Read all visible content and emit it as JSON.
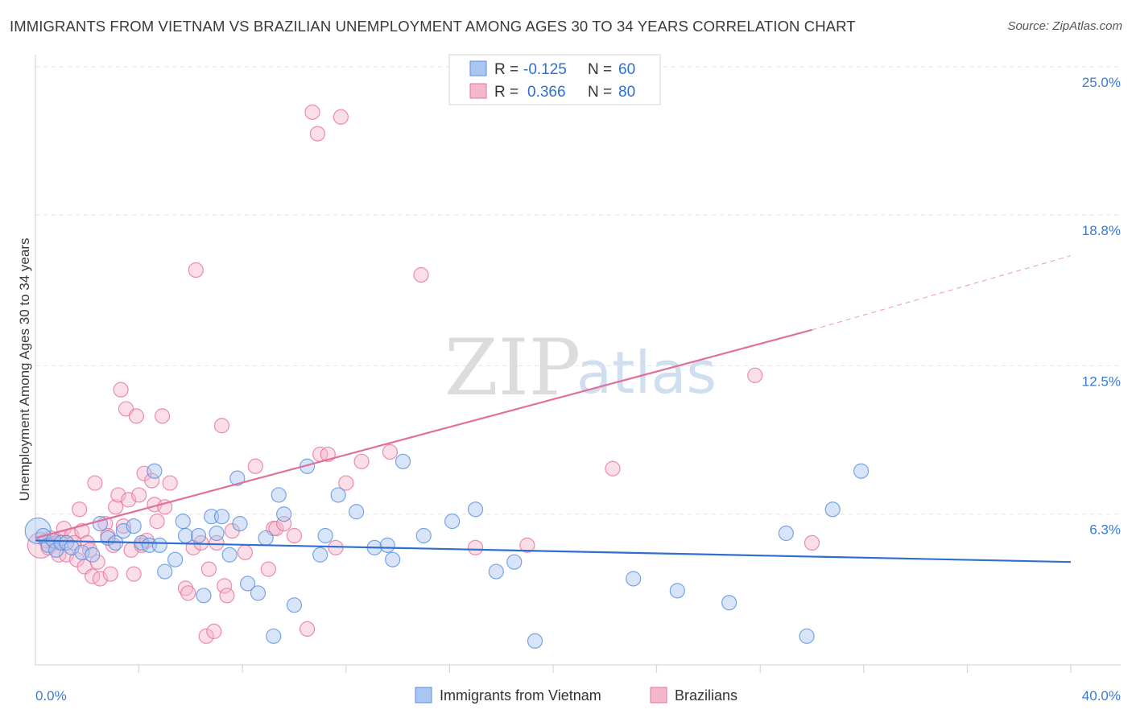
{
  "title": "IMMIGRANTS FROM VIETNAM VS BRAZILIAN UNEMPLOYMENT AMONG AGES 30 TO 34 YEARS CORRELATION CHART",
  "source": "Source: ZipAtlas.com",
  "watermark": {
    "zip": "ZIP",
    "atlas": "atlas"
  },
  "colors": {
    "blue": "#5a8fe0",
    "blue_fill": "#a9c6f0",
    "pink": "#e8709c",
    "pink_fill": "#f5b7cb",
    "blue_line": "#2f6fd0",
    "pink_line": "#e06f9a"
  },
  "legend": {
    "r_label": "R =",
    "n_label": "N =",
    "series1": {
      "r": "-0.125",
      "n": "60"
    },
    "series2": {
      "r": "0.366",
      "n": "80"
    }
  },
  "bottom_legend": {
    "series1": "Immigrants from Vietnam",
    "series2": "Brazilians"
  },
  "chart_data": {
    "type": "scatter",
    "title": "IMMIGRANTS FROM VIETNAM VS BRAZILIAN UNEMPLOYMENT AMONG AGES 30 TO 34 YEARS CORRELATION CHART",
    "xlabel": "",
    "ylabel": "Unemployment Among Ages 30 to 34 years",
    "xlim": [
      0,
      40
    ],
    "ylim": [
      0,
      25.5
    ],
    "x_tick_labels": [
      "0.0%",
      "40.0%"
    ],
    "y_ticks": [
      6.3,
      12.5,
      18.8,
      25.0
    ],
    "y_tick_labels": [
      "6.3%",
      "12.5%",
      "18.8%",
      "25.0%"
    ],
    "series": [
      {
        "name": "Immigrants from Vietnam",
        "color": "#5a8fe0",
        "r": -0.125,
        "n": 60,
        "trend": {
          "x0": 0,
          "y0": 5.2,
          "x1": 40,
          "y1": 4.3
        },
        "points": [
          [
            0.1,
            5.6
          ],
          [
            0.3,
            5.4
          ],
          [
            0.5,
            5.0
          ],
          [
            0.7,
            5.2
          ],
          [
            0.8,
            4.8
          ],
          [
            1.0,
            5.1
          ],
          [
            1.2,
            5.1
          ],
          [
            1.4,
            4.9
          ],
          [
            1.8,
            4.7
          ],
          [
            2.2,
            4.6
          ],
          [
            2.5,
            5.9
          ],
          [
            2.8,
            5.3
          ],
          [
            3.1,
            5.1
          ],
          [
            3.4,
            5.6
          ],
          [
            3.8,
            5.8
          ],
          [
            4.1,
            5.1
          ],
          [
            4.4,
            5.0
          ],
          [
            4.6,
            8.1
          ],
          [
            4.8,
            5.0
          ],
          [
            5.0,
            3.9
          ],
          [
            5.4,
            4.4
          ],
          [
            5.7,
            6.0
          ],
          [
            5.8,
            5.4
          ],
          [
            6.3,
            5.4
          ],
          [
            6.5,
            2.9
          ],
          [
            6.8,
            6.2
          ],
          [
            7.0,
            5.5
          ],
          [
            7.2,
            6.2
          ],
          [
            7.5,
            4.6
          ],
          [
            7.8,
            7.8
          ],
          [
            7.9,
            5.9
          ],
          [
            8.2,
            3.4
          ],
          [
            8.6,
            3.0
          ],
          [
            8.9,
            5.3
          ],
          [
            9.2,
            1.2
          ],
          [
            9.4,
            7.1
          ],
          [
            9.6,
            6.3
          ],
          [
            10.0,
            2.5
          ],
          [
            10.5,
            8.3
          ],
          [
            11.0,
            4.6
          ],
          [
            11.2,
            5.4
          ],
          [
            11.7,
            7.1
          ],
          [
            12.4,
            6.4
          ],
          [
            13.1,
            4.9
          ],
          [
            13.6,
            5.0
          ],
          [
            13.8,
            4.4
          ],
          [
            14.2,
            8.5
          ],
          [
            15.0,
            5.4
          ],
          [
            16.1,
            6.0
          ],
          [
            17.0,
            6.5
          ],
          [
            17.8,
            3.9
          ],
          [
            18.5,
            4.3
          ],
          [
            19.3,
            1.0
          ],
          [
            23.1,
            3.6
          ],
          [
            24.8,
            3.1
          ],
          [
            26.8,
            2.6
          ],
          [
            29.0,
            5.5
          ],
          [
            29.8,
            1.2
          ],
          [
            30.8,
            6.5
          ],
          [
            31.9,
            8.1
          ]
        ]
      },
      {
        "name": "Brazilians",
        "color": "#e8709c",
        "r": 0.366,
        "n": 80,
        "trend": {
          "x0": 0,
          "y0": 5.3,
          "x1": 30.0,
          "y1": 14.0
        },
        "trend_dashed": {
          "x0": 30.0,
          "y0": 14.0,
          "x1": 40,
          "y1": 17.1
        },
        "points": [
          [
            0.2,
            5.0
          ],
          [
            0.4,
            5.2
          ],
          [
            0.5,
            4.9
          ],
          [
            0.6,
            5.3
          ],
          [
            0.8,
            5.1
          ],
          [
            0.9,
            4.6
          ],
          [
            1.0,
            5.3
          ],
          [
            1.1,
            5.7
          ],
          [
            1.2,
            4.6
          ],
          [
            1.4,
            5.4
          ],
          [
            1.5,
            5.1
          ],
          [
            1.6,
            4.4
          ],
          [
            1.7,
            6.5
          ],
          [
            1.8,
            5.6
          ],
          [
            1.9,
            4.1
          ],
          [
            2.0,
            5.1
          ],
          [
            2.1,
            4.8
          ],
          [
            2.2,
            3.7
          ],
          [
            2.3,
            7.6
          ],
          [
            2.4,
            4.3
          ],
          [
            2.5,
            3.6
          ],
          [
            2.7,
            5.9
          ],
          [
            2.8,
            5.4
          ],
          [
            2.9,
            3.8
          ],
          [
            3.0,
            5.0
          ],
          [
            3.1,
            6.6
          ],
          [
            3.2,
            7.1
          ],
          [
            3.3,
            11.5
          ],
          [
            3.4,
            5.8
          ],
          [
            3.5,
            10.7
          ],
          [
            3.6,
            6.9
          ],
          [
            3.7,
            4.8
          ],
          [
            3.8,
            3.8
          ],
          [
            3.9,
            10.4
          ],
          [
            4.0,
            7.1
          ],
          [
            4.1,
            5.0
          ],
          [
            4.2,
            8.0
          ],
          [
            4.3,
            5.2
          ],
          [
            4.5,
            7.7
          ],
          [
            4.6,
            6.7
          ],
          [
            4.7,
            6.0
          ],
          [
            4.9,
            10.4
          ],
          [
            5.0,
            6.6
          ],
          [
            5.2,
            7.6
          ],
          [
            5.8,
            3.2
          ],
          [
            5.9,
            3.0
          ],
          [
            6.1,
            4.9
          ],
          [
            6.2,
            16.5
          ],
          [
            6.4,
            5.1
          ],
          [
            6.6,
            1.2
          ],
          [
            6.7,
            4.0
          ],
          [
            6.9,
            1.4
          ],
          [
            7.0,
            5.1
          ],
          [
            7.2,
            10.0
          ],
          [
            7.3,
            3.3
          ],
          [
            7.4,
            2.9
          ],
          [
            7.6,
            5.6
          ],
          [
            8.1,
            4.7
          ],
          [
            8.5,
            8.3
          ],
          [
            9.0,
            4.0
          ],
          [
            9.2,
            5.7
          ],
          [
            9.3,
            5.7
          ],
          [
            9.6,
            5.9
          ],
          [
            10.0,
            5.4
          ],
          [
            10.5,
            1.5
          ],
          [
            10.7,
            23.1
          ],
          [
            10.9,
            22.2
          ],
          [
            11.0,
            8.8
          ],
          [
            11.3,
            8.8
          ],
          [
            11.6,
            4.9
          ],
          [
            11.8,
            22.9
          ],
          [
            12.0,
            7.6
          ],
          [
            12.6,
            8.5
          ],
          [
            13.7,
            8.9
          ],
          [
            14.9,
            16.3
          ],
          [
            17.0,
            4.9
          ],
          [
            19.0,
            5.0
          ],
          [
            22.3,
            8.2
          ],
          [
            27.8,
            12.1
          ],
          [
            30.0,
            5.1
          ]
        ]
      }
    ]
  }
}
